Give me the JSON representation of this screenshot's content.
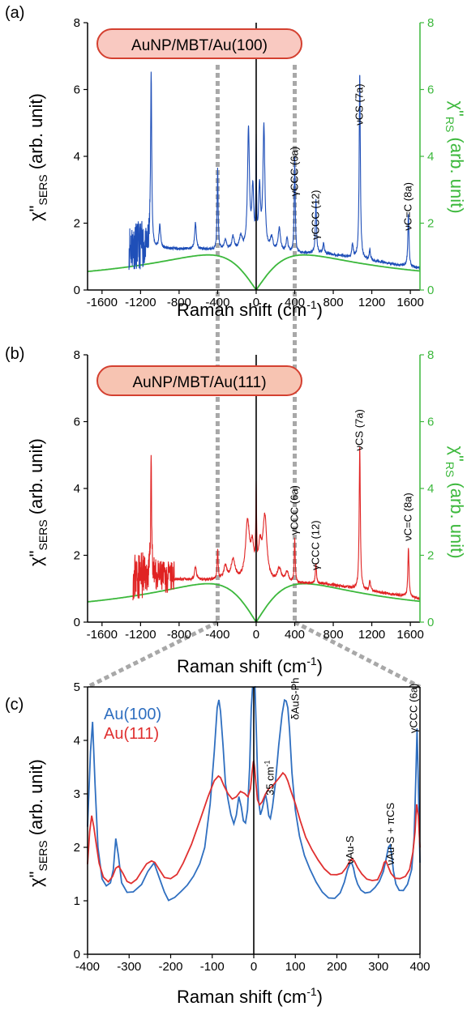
{
  "colors": {
    "blue": "#1f4fb8",
    "red": "#e02323",
    "green": "#3cb83c",
    "c_blue": "#2f6fc0",
    "c_red": "#e03030",
    "dash": "#a8a8a8",
    "pill_a": "#f9c9c1",
    "pill_b": "#f7c4b2",
    "pill_border": "#d44030"
  },
  "chart_data": [
    {
      "panel": "(a)",
      "type": "line",
      "sample": "AuNP/MBT/Au(100)",
      "xlabel": "Raman shift (cm",
      "xlabel_sup": "-1",
      "xlabel_end": ")",
      "ylabel": "χ\"",
      "ylabel_sub": "SERS",
      "ylabel_end": " (arb. unit)",
      "y2label": "χ\"",
      "y2label_sub": "RS",
      "y2label_end": " (arb. unit)",
      "xlim": [
        -1750,
        1700
      ],
      "ylim": [
        0,
        8
      ],
      "xticks": [
        -1600,
        -1200,
        -800,
        -400,
        0,
        400,
        800,
        1200,
        1600
      ],
      "yticks": [
        0,
        2,
        4,
        6,
        8
      ],
      "y2ticks": [
        0,
        2,
        4,
        6,
        8
      ],
      "baseline": 1.1,
      "noise_range": [
        -1320,
        -1100
      ],
      "peaks": [
        [
          -1090,
          5.3,
          7
        ],
        [
          -1000,
          0.7,
          10
        ],
        [
          -630,
          0.8,
          10
        ],
        [
          -400,
          2.4,
          6
        ],
        [
          -320,
          0.3,
          15
        ],
        [
          -240,
          0.4,
          15
        ],
        [
          -160,
          0.4,
          18
        ],
        [
          -80,
          3.6,
          12
        ],
        [
          -35,
          1.8,
          12
        ],
        [
          0,
          3.0,
          4
        ],
        [
          35,
          1.8,
          12
        ],
        [
          80,
          3.7,
          12
        ],
        [
          160,
          0.4,
          18
        ],
        [
          240,
          0.7,
          15
        ],
        [
          320,
          0.4,
          12
        ],
        [
          400,
          2.9,
          6
        ],
        [
          620,
          1.6,
          7
        ],
        [
          700,
          0.3,
          8
        ],
        [
          1000,
          0.4,
          8
        ],
        [
          1075,
          5.6,
          7
        ],
        [
          1180,
          0.3,
          8
        ],
        [
          1580,
          1.6,
          7
        ]
      ],
      "rs_curve": {
        "peak_y": 1.05,
        "peak_x": 500
      },
      "annotations": [
        {
          "text": "γCCC (6a)",
          "x": 400,
          "y": 3.55
        },
        {
          "text": "γCCC (12)",
          "x": 620,
          "y": 2.25
        },
        {
          "text": "νCS (7a)",
          "x": 1075,
          "y": 5.55
        },
        {
          "text": "νC=C (8a)",
          "x": 1580,
          "y": 2.5
        }
      ]
    },
    {
      "panel": "(b)",
      "type": "line",
      "sample": "AuNP/MBT/Au(111)",
      "xlabel": "Raman shift (cm",
      "xlabel_sup": "-1",
      "xlabel_end": ")",
      "ylabel": "χ\"",
      "ylabel_sub": "SERS",
      "ylabel_end": " (arb. unit)",
      "y2label": "χ\"",
      "y2label_sub": "RS",
      "y2label_end": " (arb. unit)",
      "xlim": [
        -1750,
        1700
      ],
      "ylim": [
        0,
        8
      ],
      "xticks": [
        -1600,
        -1200,
        -800,
        -400,
        0,
        400,
        800,
        1200,
        1600
      ],
      "yticks": [
        0,
        2,
        4,
        6,
        8
      ],
      "y2ticks": [
        0,
        2,
        4,
        6,
        8
      ],
      "baseline": 1.15,
      "noise_range": [
        -1280,
        -850
      ],
      "peaks": [
        [
          -1090,
          3.7,
          6
        ],
        [
          -630,
          0.4,
          10
        ],
        [
          -400,
          0.9,
          6
        ],
        [
          -320,
          0.4,
          20
        ],
        [
          -240,
          0.6,
          25
        ],
        [
          -90,
          1.7,
          25
        ],
        [
          -40,
          0.9,
          20
        ],
        [
          0,
          2.4,
          5
        ],
        [
          40,
          0.9,
          20
        ],
        [
          90,
          1.9,
          25
        ],
        [
          240,
          0.4,
          25
        ],
        [
          320,
          0.3,
          20
        ],
        [
          400,
          1.3,
          6
        ],
        [
          620,
          0.6,
          7
        ],
        [
          1075,
          4.3,
          7
        ],
        [
          1180,
          0.3,
          8
        ],
        [
          1580,
          1.5,
          7
        ]
      ],
      "rs_curve": {
        "peak_y": 1.15,
        "peak_x": 500
      },
      "annotations": [
        {
          "text": "γCCC (6a)",
          "x": 400,
          "y": 3.35
        },
        {
          "text": "γCCC (12)",
          "x": 620,
          "y": 2.3
        },
        {
          "text": "νCS (7a)",
          "x": 1075,
          "y": 5.75
        },
        {
          "text": "νC=C (8a)",
          "x": 1580,
          "y": 3.15
        }
      ]
    },
    {
      "panel": "(c)",
      "type": "line",
      "xlabel": "Raman shift (cm",
      "xlabel_sup": "-1",
      "xlabel_end": ")",
      "ylabel": "χ\"",
      "ylabel_sub": "SERS",
      "ylabel_end": " (arb. unit)",
      "xlim": [
        -400,
        400
      ],
      "ylim": [
        0,
        5
      ],
      "xticks": [
        -400,
        -300,
        -200,
        -100,
        0,
        100,
        200,
        300,
        400
      ],
      "yticks": [
        0,
        1,
        2,
        3,
        4,
        5
      ],
      "series": [
        {
          "name": "Au(100)",
          "x": [
            -400,
            -393,
            -388,
            -382,
            -375,
            -365,
            -355,
            -345,
            -338,
            -332,
            -326,
            -318,
            -305,
            -290,
            -270,
            -255,
            -240,
            -228,
            -215,
            -205,
            -190,
            -175,
            -160,
            -145,
            -130,
            -118,
            -105,
            -95,
            -88,
            -84,
            -80,
            -74,
            -68,
            -62,
            -55,
            -48,
            -42,
            -36,
            -30,
            -25,
            -20,
            -15,
            -10,
            -6,
            -3,
            0,
            3,
            6,
            9,
            12,
            16,
            20,
            24,
            28,
            32,
            36,
            40,
            45,
            52,
            60,
            68,
            74,
            78,
            82,
            86,
            92,
            100,
            110,
            122,
            135,
            150,
            165,
            180,
            195,
            208,
            218,
            226,
            232,
            236,
            240,
            244,
            250,
            258,
            268,
            280,
            292,
            302,
            312,
            318,
            324,
            328,
            332,
            336,
            342,
            350,
            360,
            370,
            380,
            386,
            390,
            393,
            396,
            400
          ],
          "y": [
            2.4,
            3.8,
            4.35,
            3.2,
            2.0,
            1.4,
            1.28,
            1.35,
            1.6,
            2.15,
            1.85,
            1.35,
            1.15,
            1.18,
            1.3,
            1.55,
            1.7,
            1.45,
            1.15,
            1.02,
            1.05,
            1.18,
            1.3,
            1.45,
            1.7,
            2.0,
            2.8,
            3.8,
            4.6,
            4.75,
            4.55,
            3.9,
            3.2,
            2.9,
            2.6,
            2.45,
            2.6,
            2.95,
            2.75,
            2.5,
            2.45,
            2.7,
            3.5,
            4.6,
            5.0,
            5.0,
            5.0,
            4.2,
            3.4,
            2.85,
            2.6,
            2.7,
            2.85,
            3.0,
            2.85,
            2.6,
            2.55,
            2.75,
            3.2,
            3.9,
            4.5,
            4.75,
            4.75,
            4.6,
            4.2,
            3.4,
            2.7,
            2.2,
            1.85,
            1.6,
            1.35,
            1.15,
            1.05,
            1.05,
            1.15,
            1.35,
            1.6,
            1.7,
            1.7,
            1.6,
            1.45,
            1.3,
            1.2,
            1.15,
            1.15,
            1.25,
            1.35,
            1.55,
            1.75,
            2.0,
            2.05,
            1.85,
            1.55,
            1.3,
            1.2,
            1.2,
            1.3,
            1.6,
            2.2,
            3.3,
            4.22,
            3.2,
            1.7
          ]
        },
        {
          "name": "Au(111)",
          "x": [
            -400,
            -395,
            -390,
            -385,
            -380,
            -372,
            -362,
            -350,
            -340,
            -332,
            -325,
            -315,
            -305,
            -295,
            -282,
            -270,
            -258,
            -246,
            -238,
            -228,
            -215,
            -200,
            -185,
            -170,
            -150,
            -130,
            -110,
            -95,
            -85,
            -80,
            -72,
            -62,
            -52,
            -42,
            -32,
            -22,
            -14,
            -8,
            -4,
            -1,
            0,
            2,
            5,
            9,
            14,
            20,
            28,
            36,
            44,
            52,
            62,
            70,
            76,
            82,
            90,
            100,
            112,
            125,
            140,
            155,
            170,
            185,
            200,
            212,
            222,
            230,
            236,
            242,
            250,
            260,
            272,
            285,
            298,
            308,
            314,
            318,
            322,
            330,
            340,
            352,
            365,
            375,
            383,
            388,
            392,
            396,
            400
          ],
          "y": [
            1.7,
            2.3,
            2.6,
            2.4,
            2.1,
            1.7,
            1.45,
            1.35,
            1.45,
            1.6,
            1.65,
            1.5,
            1.35,
            1.32,
            1.4,
            1.55,
            1.7,
            1.75,
            1.72,
            1.6,
            1.45,
            1.4,
            1.5,
            1.7,
            2.05,
            2.5,
            2.95,
            3.25,
            3.32,
            3.3,
            3.15,
            3.0,
            2.9,
            2.95,
            3.05,
            3.0,
            2.95,
            3.1,
            3.4,
            3.6,
            3.6,
            3.5,
            3.2,
            2.9,
            2.8,
            2.85,
            3.0,
            3.1,
            3.15,
            3.2,
            3.3,
            3.38,
            3.35,
            3.25,
            3.05,
            2.8,
            2.5,
            2.2,
            1.95,
            1.75,
            1.6,
            1.5,
            1.48,
            1.52,
            1.62,
            1.72,
            1.78,
            1.75,
            1.62,
            1.5,
            1.42,
            1.38,
            1.4,
            1.55,
            1.72,
            1.75,
            1.68,
            1.52,
            1.42,
            1.4,
            1.45,
            1.6,
            1.9,
            2.3,
            2.8,
            2.6,
            2.0
          ]
        }
      ],
      "annotations": [
        {
          "text": "δAuS-Ph",
          "x": 100,
          "y": 4.78
        },
        {
          "text": "35 cm",
          "sup": "-1",
          "x": 40,
          "y": 3.3
        },
        {
          "text": "νAu-S",
          "x": 232,
          "y": 1.95
        },
        {
          "text": "νAu-S + πCS",
          "x": 330,
          "y": 2.25
        },
        {
          "text": "γCCC (6a)",
          "x": 385,
          "y": 4.6
        }
      ]
    }
  ]
}
